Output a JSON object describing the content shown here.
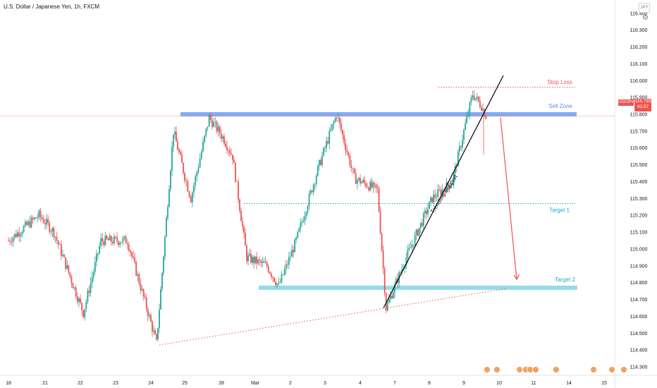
{
  "header": {
    "title": "U.S. Dollar / Japanese Yen, 1h, FXCM",
    "currency_badge": "JPY"
  },
  "price_tag": {
    "symbol": "USDJPY",
    "price": "115.793",
    "countdown": "41:57"
  },
  "colors": {
    "bull": "#26a69a",
    "bear": "#ef5350",
    "sell_zone": "#5b8ff0",
    "target_zone": "#7fd6e8",
    "stop_loss": "#ef5350",
    "target_text": "#26a7c9",
    "trendline": "#000000",
    "dotted_support": "#ef5350"
  },
  "chart_data": {
    "type": "candlestick",
    "title": "U.S. Dollar / Japanese Yen, 1h, FXCM",
    "xlabel": "",
    "ylabel": "",
    "ylim": [
      114.25,
      116.42
    ],
    "y_ticks": [
      "116.400",
      "116.300",
      "116.200",
      "116.100",
      "116.000",
      "115.900",
      "115.800",
      "115.700",
      "115.600",
      "115.500",
      "115.400",
      "115.300",
      "115.200",
      "115.100",
      "115.000",
      "114.900",
      "114.800",
      "114.700",
      "114.600",
      "114.500",
      "114.400",
      "114.300"
    ],
    "x_ticks": [
      "18",
      "21",
      "22",
      "23",
      "24",
      "25",
      "28",
      "Mar",
      "2",
      "3",
      "4",
      "7",
      "8",
      "9",
      "10",
      "11",
      "14",
      "15"
    ],
    "key_points": [
      {
        "date": "18",
        "close": 115.05
      },
      {
        "date": "21",
        "close": 115.15
      },
      {
        "date": "22",
        "close": 114.65
      },
      {
        "date": "23",
        "close": 115.05
      },
      {
        "date": "24",
        "close": 114.43
      },
      {
        "date": "24",
        "close": 115.7
      },
      {
        "date": "25",
        "close": 115.3
      },
      {
        "date": "25",
        "close": 115.8
      },
      {
        "date": "28",
        "close": 115.65
      },
      {
        "date": "Mar",
        "close": 114.95
      },
      {
        "date": "2",
        "close": 114.75
      },
      {
        "date": "3",
        "close": 115.55
      },
      {
        "date": "3",
        "close": 115.8
      },
      {
        "date": "4",
        "close": 115.4
      },
      {
        "date": "4",
        "close": 114.65
      },
      {
        "date": "7",
        "close": 115.3
      },
      {
        "date": "8",
        "close": 115.7
      },
      {
        "date": "9",
        "close": 115.92
      },
      {
        "date": "9",
        "close": 115.79
      }
    ],
    "levels": [
      {
        "label": "Stop Loss",
        "price": 115.96
      },
      {
        "label": "Sell Zone",
        "price": 115.8
      },
      {
        "label": "Target 1",
        "price": 115.27
      },
      {
        "label": "Target 2",
        "price": 114.77
      }
    ],
    "annotations": [
      "Trendline Support"
    ]
  }
}
